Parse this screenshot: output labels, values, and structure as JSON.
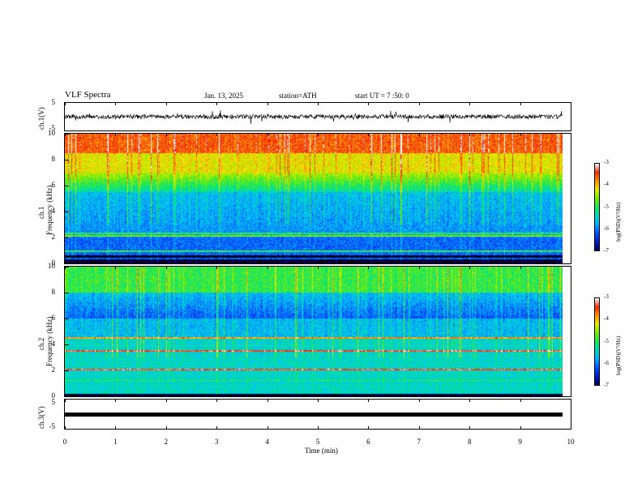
{
  "header": {
    "title": "VLF  Spectra",
    "date": "Jan. 13, 2025",
    "station": "station=ATH",
    "start": "start  UT  =   7 :50: 0"
  },
  "chart_data": [
    {
      "type": "line",
      "panel": "ch1-waveform",
      "ylabel": "ch.1(V)",
      "ylim": [
        -5,
        5
      ],
      "yticks": [
        "5",
        "-5"
      ],
      "xlim": [
        0,
        10
      ],
      "x_extent_min": 9.8
    },
    {
      "type": "heatmap",
      "panel": "ch1-spectrogram",
      "ylabel_line1": "ch.1",
      "ylabel_line2": "Frequency  (kHz)",
      "ylim": [
        0,
        10
      ],
      "yticks": [
        "0",
        "2",
        "4",
        "6",
        "8",
        "10"
      ],
      "x_extent_min": 9.8,
      "colorbar": {
        "label": "log(PSD)(V²/Hz)",
        "range": [
          -7,
          -3
        ],
        "ticks": [
          "-3",
          "-4",
          "-5",
          "-6",
          "-7"
        ]
      }
    },
    {
      "type": "heatmap",
      "panel": "ch2-spectrogram",
      "ylabel_line1": "ch.2",
      "ylabel_line2": "Frequency  (kHz)",
      "ylim": [
        0,
        10
      ],
      "yticks": [
        "0",
        "2",
        "4",
        "6",
        "8",
        "10"
      ],
      "x_extent_min": 9.8,
      "colorbar": {
        "label": "log(PSD)(V²/Hz)",
        "range": [
          -7,
          -3
        ],
        "ticks": [
          "-3",
          "-4",
          "-5",
          "-6",
          "-7"
        ]
      }
    },
    {
      "type": "line",
      "panel": "ch3-waveform",
      "ylabel": "ch.3(V)",
      "ylim": [
        -5,
        5
      ],
      "yticks": [
        "5",
        "-5"
      ],
      "xlim": [
        0,
        10
      ],
      "x_extent_min": 9.8
    }
  ],
  "xaxis": {
    "label": "Time  (min)",
    "ticks": [
      "0",
      "1",
      "2",
      "3",
      "4",
      "5",
      "6",
      "7",
      "8",
      "9",
      "10"
    ]
  }
}
